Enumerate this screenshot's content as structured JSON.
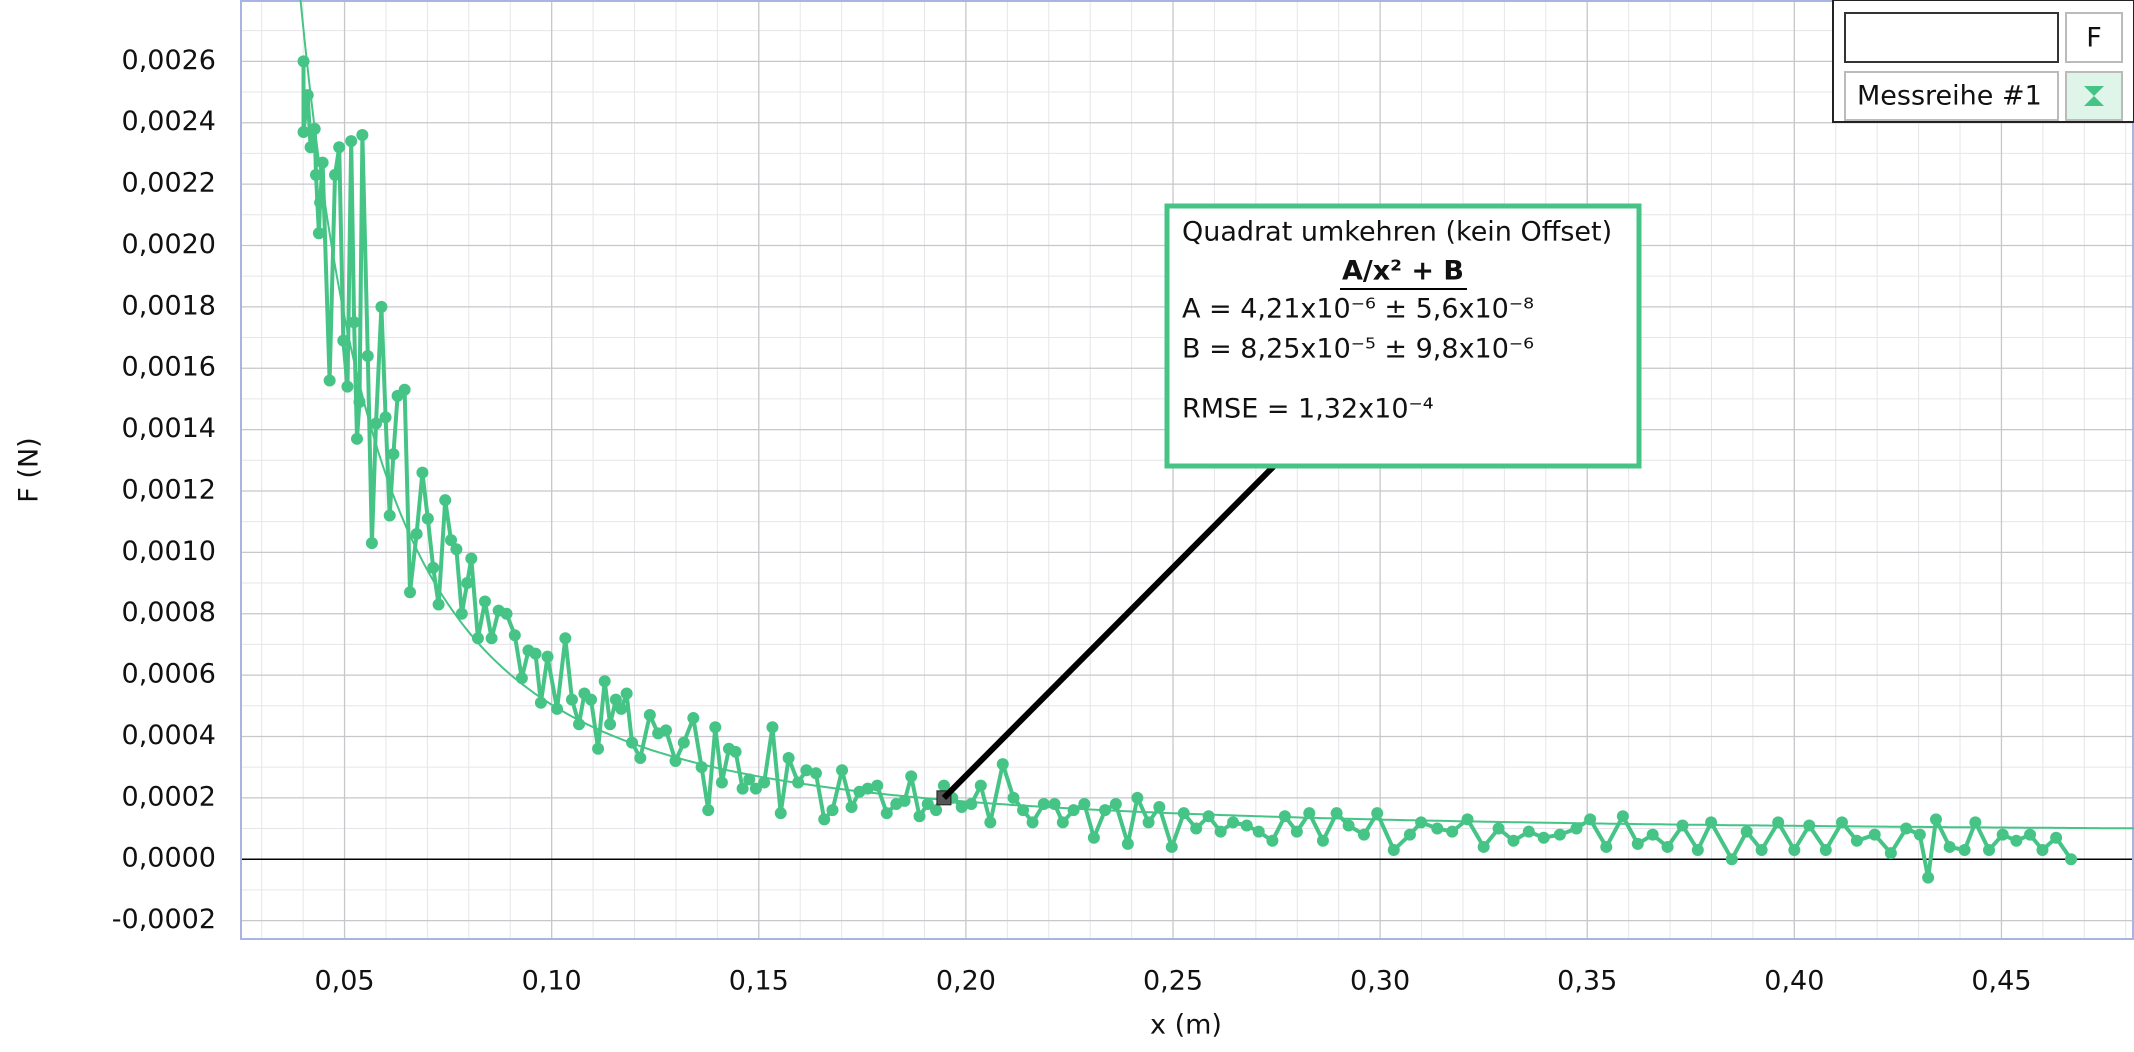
{
  "chart_data": {
    "type": "scatter",
    "x_label": "x (m)",
    "y_label": "F (N)",
    "xlim": [
      0.025,
      0.482
    ],
    "ylim": [
      -0.00026,
      0.0028
    ],
    "xticks": [
      {
        "value": 0.05,
        "label": "0,05"
      },
      {
        "value": 0.1,
        "label": "0,10"
      },
      {
        "value": 0.15,
        "label": "0,15"
      },
      {
        "value": 0.2,
        "label": "0,20"
      },
      {
        "value": 0.25,
        "label": "0,25"
      },
      {
        "value": 0.3,
        "label": "0,30"
      },
      {
        "value": 0.35,
        "label": "0,35"
      },
      {
        "value": 0.4,
        "label": "0,40"
      },
      {
        "value": 0.45,
        "label": "0,45"
      }
    ],
    "yticks": [
      {
        "value": -0.0002,
        "label": "-0,0002"
      },
      {
        "value": 0,
        "label": "0,0000"
      },
      {
        "value": 0.0002,
        "label": "0,0002"
      },
      {
        "value": 0.0004,
        "label": "0,0004"
      },
      {
        "value": 0.0006,
        "label": "0,0006"
      },
      {
        "value": 0.0008,
        "label": "0,0008"
      },
      {
        "value": 0.001,
        "label": "0,0010"
      },
      {
        "value": 0.0012,
        "label": "0,0012"
      },
      {
        "value": 0.0014,
        "label": "0,0014"
      },
      {
        "value": 0.0016,
        "label": "0,0016"
      },
      {
        "value": 0.0018,
        "label": "0,0018"
      },
      {
        "value": 0.002,
        "label": "0,0020"
      },
      {
        "value": 0.0022,
        "label": "0,0022"
      },
      {
        "value": 0.0024,
        "label": "0,0024"
      },
      {
        "value": 0.0026,
        "label": "0,0026"
      }
    ],
    "grid": true,
    "zero_line": true,
    "legend_header": "F",
    "x": [
      0.0401,
      0.0401,
      0.0411,
      0.0418,
      0.0428,
      0.0431,
      0.0438,
      0.0441,
      0.0447,
      0.0464,
      0.0477,
      0.0487,
      0.0497,
      0.0507,
      0.0516,
      0.0523,
      0.053,
      0.0536,
      0.0543,
      0.0556,
      0.0566,
      0.0576,
      0.0589,
      0.0599,
      0.0609,
      0.0618,
      0.0628,
      0.0645,
      0.0658,
      0.0674,
      0.0688,
      0.0701,
      0.0714,
      0.0727,
      0.0743,
      0.0757,
      0.077,
      0.0783,
      0.0796,
      0.0806,
      0.0822,
      0.0839,
      0.0855,
      0.0872,
      0.0891,
      0.0911,
      0.0928,
      0.0944,
      0.0961,
      0.0974,
      0.099,
      0.1013,
      0.1033,
      0.1049,
      0.1066,
      0.1079,
      0.1095,
      0.1112,
      0.1128,
      0.1141,
      0.1155,
      0.1168,
      0.1181,
      0.1194,
      0.1214,
      0.1237,
      0.1257,
      0.1276,
      0.1299,
      0.1319,
      0.1342,
      0.1362,
      0.1378,
      0.1395,
      0.1411,
      0.1428,
      0.1444,
      0.1461,
      0.1477,
      0.1493,
      0.1513,
      0.1533,
      0.1553,
      0.1572,
      0.1595,
      0.1615,
      0.1638,
      0.1658,
      0.1678,
      0.1701,
      0.1724,
      0.1743,
      0.1763,
      0.1786,
      0.1809,
      0.1832,
      0.1852,
      0.1868,
      0.1888,
      0.1908,
      0.1928,
      0.1947,
      0.1967,
      0.199,
      0.2013,
      0.2036,
      0.2059,
      0.2089,
      0.2115,
      0.2138,
      0.2161,
      0.2188,
      0.2214,
      0.2234,
      0.226,
      0.2286,
      0.2309,
      0.2336,
      0.2362,
      0.2391,
      0.2414,
      0.2441,
      0.2467,
      0.2497,
      0.2526,
      0.2556,
      0.2586,
      0.2615,
      0.2645,
      0.2678,
      0.2707,
      0.274,
      0.277,
      0.2799,
      0.2829,
      0.2862,
      0.2895,
      0.2924,
      0.2961,
      0.2993,
      0.3033,
      0.3072,
      0.3099,
      0.3138,
      0.3174,
      0.3211,
      0.325,
      0.3286,
      0.3322,
      0.3359,
      0.3395,
      0.3434,
      0.3474,
      0.3507,
      0.3546,
      0.3586,
      0.3622,
      0.3658,
      0.3694,
      0.373,
      0.3767,
      0.3799,
      0.3849,
      0.3885,
      0.3921,
      0.3961,
      0.4,
      0.4036,
      0.4076,
      0.4115,
      0.4151,
      0.4194,
      0.4233,
      0.427,
      0.4303,
      0.4323,
      0.4342,
      0.4375,
      0.4411,
      0.4437,
      0.447,
      0.4503,
      0.4536,
      0.4569,
      0.4599,
      0.4632,
      0.4668
    ],
    "series": [
      {
        "name": "Messreihe #1",
        "color": "#45c486",
        "values": [
          0.0026,
          0.00237,
          0.00249,
          0.00232,
          0.00238,
          0.00223,
          0.00204,
          0.00214,
          0.00227,
          0.00156,
          0.00223,
          0.00232,
          0.00169,
          0.00154,
          0.00234,
          0.00175,
          0.00137,
          0.00149,
          0.00236,
          0.00164,
          0.00103,
          0.00142,
          0.0018,
          0.00144,
          0.00112,
          0.00132,
          0.00151,
          0.00153,
          0.00087,
          0.00106,
          0.00126,
          0.00111,
          0.00095,
          0.00083,
          0.00117,
          0.00104,
          0.00101,
          0.0008,
          0.0009,
          0.00098,
          0.00072,
          0.00084,
          0.00072,
          0.00081,
          0.0008,
          0.00073,
          0.00059,
          0.00068,
          0.00067,
          0.00051,
          0.00066,
          0.00049,
          0.00072,
          0.00052,
          0.00044,
          0.00054,
          0.00052,
          0.00036,
          0.00058,
          0.00044,
          0.00052,
          0.00049,
          0.00054,
          0.00038,
          0.00033,
          0.00047,
          0.00041,
          0.00042,
          0.00032,
          0.00038,
          0.00046,
          0.0003,
          0.00016,
          0.00043,
          0.00025,
          0.00036,
          0.00035,
          0.00023,
          0.00026,
          0.00023,
          0.00025,
          0.00043,
          0.00015,
          0.00033,
          0.00025,
          0.00029,
          0.00028,
          0.00013,
          0.00016,
          0.00029,
          0.00017,
          0.00022,
          0.00023,
          0.00024,
          0.00015,
          0.00018,
          0.00019,
          0.00027,
          0.00014,
          0.00018,
          0.00016,
          0.00024,
          0.0002,
          0.00017,
          0.00018,
          0.00024,
          0.00012,
          0.00031,
          0.0002,
          0.00016,
          0.00012,
          0.00018,
          0.00018,
          0.00012,
          0.00016,
          0.00018,
          7e-05,
          0.00016,
          0.00018,
          5e-05,
          0.0002,
          0.00012,
          0.00017,
          4e-05,
          0.00015,
          0.0001,
          0.00014,
          9e-05,
          0.00012,
          0.00011,
          9e-05,
          6e-05,
          0.00014,
          9e-05,
          0.00015,
          6e-05,
          0.00015,
          0.00011,
          8e-05,
          0.00015,
          3e-05,
          8e-05,
          0.00012,
          0.0001,
          9e-05,
          0.00013,
          4e-05,
          0.0001,
          6e-05,
          9e-05,
          7e-05,
          8e-05,
          0.0001,
          0.00013,
          4e-05,
          0.00014,
          5e-05,
          8e-05,
          4e-05,
          0.00011,
          3e-05,
          0.00012,
          0,
          9e-05,
          3e-05,
          0.00012,
          3e-05,
          0.00011,
          3e-05,
          0.00012,
          6e-05,
          8e-05,
          2e-05,
          0.0001,
          8e-05,
          -6e-05,
          0.00013,
          4e-05,
          3e-05,
          0.00012,
          3e-05,
          8e-05,
          6e-05,
          8e-05,
          3e-05,
          7e-05,
          0
        ]
      }
    ],
    "fit": {
      "A": 4.21e-06,
      "B": 8.25e-05,
      "color": "#45c486"
    },
    "annotation": {
      "x": 0.1947,
      "y": 0.0002,
      "title": "Quadrat umkehren (kein Offset)",
      "formula": "A/x² + B",
      "lines": [
        "A = 4,21x10⁻⁶ ± 5,6x10⁻⁸",
        "B = 8,25x10⁻⁵ ± 9,8x10⁻⁶"
      ],
      "rmse": "RMSE = 1,32x10⁻⁴"
    }
  }
}
